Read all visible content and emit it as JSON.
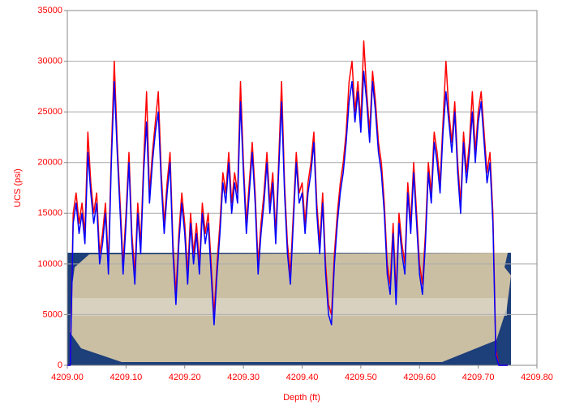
{
  "chart_data": {
    "type": "line",
    "xlabel": "Depth (ft)",
    "ylabel": "UCS (psi)",
    "xlim": [
      4209,
      4209.8
    ],
    "ylim": [
      0,
      35000
    ],
    "xticks": [
      {
        "value": 4209,
        "label": "4209.00"
      },
      {
        "value": 4209.1,
        "label": "4209.10"
      },
      {
        "value": 4209.2,
        "label": "4209.20"
      },
      {
        "value": 4209.3,
        "label": "4209.30"
      },
      {
        "value": 4209.4,
        "label": "4209.40"
      },
      {
        "value": 4209.5,
        "label": "4209.50"
      },
      {
        "value": 4209.6,
        "label": "4209.60"
      },
      {
        "value": 4209.7,
        "label": "4209.70"
      },
      {
        "value": 4209.8,
        "label": "4209.80"
      }
    ],
    "yticks": [
      0,
      5000,
      10000,
      15000,
      20000,
      25000,
      30000,
      35000
    ],
    "grid": true,
    "x": [
      4209,
      4209.005,
      4209.01,
      4209.015,
      4209.02,
      4209.025,
      4209.03,
      4209.035,
      4209.04,
      4209.045,
      4209.05,
      4209.055,
      4209.06,
      4209.065,
      4209.07,
      4209.075,
      4209.08,
      4209.085,
      4209.09,
      4209.095,
      4209.1,
      4209.105,
      4209.11,
      4209.115,
      4209.12,
      4209.125,
      4209.13,
      4209.135,
      4209.14,
      4209.145,
      4209.15,
      4209.155,
      4209.16,
      4209.165,
      4209.17,
      4209.175,
      4209.18,
      4209.185,
      4209.19,
      4209.195,
      4209.2,
      4209.205,
      4209.21,
      4209.215,
      4209.22,
      4209.225,
      4209.23,
      4209.235,
      4209.24,
      4209.245,
      4209.25,
      4209.255,
      4209.26,
      4209.265,
      4209.27,
      4209.275,
      4209.28,
      4209.285,
      4209.29,
      4209.295,
      4209.3,
      4209.305,
      4209.31,
      4209.315,
      4209.32,
      4209.325,
      4209.33,
      4209.335,
      4209.34,
      4209.345,
      4209.35,
      4209.355,
      4209.36,
      4209.365,
      4209.37,
      4209.375,
      4209.38,
      4209.385,
      4209.39,
      4209.395,
      4209.4,
      4209.405,
      4209.41,
      4209.415,
      4209.42,
      4209.425,
      4209.43,
      4209.435,
      4209.44,
      4209.445,
      4209.45,
      4209.455,
      4209.46,
      4209.465,
      4209.47,
      4209.475,
      4209.48,
      4209.485,
      4209.49,
      4209.495,
      4209.5,
      4209.505,
      4209.51,
      4209.515,
      4209.52,
      4209.525,
      4209.53,
      4209.535,
      4209.54,
      4209.545,
      4209.55,
      4209.555,
      4209.56,
      4209.565,
      4209.57,
      4209.575,
      4209.58,
      4209.585,
      4209.59,
      4209.595,
      4209.6,
      4209.605,
      4209.61,
      4209.615,
      4209.62,
      4209.625,
      4209.63,
      4209.635,
      4209.64,
      4209.645,
      4209.65,
      4209.655,
      4209.66,
      4209.665,
      4209.67,
      4209.675,
      4209.68,
      4209.685,
      4209.69,
      4209.695,
      4209.7,
      4209.705,
      4209.71,
      4209.715,
      4209.72,
      4209.725,
      4209.73,
      4209.735,
      4209.74,
      4209.745,
      4209.75
    ],
    "series": [
      {
        "color": "#ff0000",
        "values": [
          0,
          0,
          15000,
          17000,
          14000,
          16000,
          13000,
          23000,
          18000,
          15000,
          17000,
          11000,
          13000,
          16000,
          10000,
          21000,
          30000,
          22000,
          16000,
          10000,
          15000,
          21000,
          13000,
          9000,
          16000,
          12000,
          20000,
          27000,
          17000,
          21000,
          24000,
          27000,
          19000,
          14000,
          18000,
          21000,
          12000,
          7000,
          13000,
          17000,
          14000,
          9000,
          15000,
          11000,
          14000,
          10000,
          16000,
          13000,
          15000,
          10000,
          5000,
          10000,
          14000,
          19000,
          17000,
          21000,
          16000,
          19000,
          17000,
          28000,
          20000,
          14000,
          18000,
          22000,
          17000,
          10000,
          14000,
          17000,
          21000,
          16000,
          19000,
          13000,
          20000,
          28000,
          18000,
          12000,
          9000,
          15000,
          21000,
          17000,
          18000,
          14000,
          18000,
          20000,
          23000,
          16000,
          12000,
          17000,
          10000,
          6000,
          5000,
          11000,
          15000,
          18000,
          20000,
          23000,
          28000,
          30000,
          25000,
          28000,
          24000,
          32000,
          27000,
          23000,
          29000,
          26000,
          22000,
          20000,
          16000,
          10000,
          8000,
          14000,
          7000,
          15000,
          12000,
          10000,
          18000,
          14000,
          20000,
          15000,
          10000,
          8000,
          13000,
          20000,
          17000,
          23000,
          21000,
          18000,
          24000,
          30000,
          25000,
          22000,
          26000,
          20000,
          16000,
          23000,
          19000,
          22000,
          27000,
          21000,
          25000,
          27000,
          23000,
          19000,
          21000,
          15000,
          1500,
          0,
          0,
          0,
          0
        ]
      },
      {
        "color": "#0000ff",
        "values": [
          0,
          0,
          14000,
          16000,
          13000,
          15000,
          12000,
          21000,
          17000,
          14000,
          16000,
          10000,
          12000,
          15000,
          9000,
          20000,
          28000,
          21000,
          15000,
          9000,
          14000,
          20000,
          12000,
          8000,
          15000,
          11000,
          19000,
          24000,
          16000,
          20000,
          23000,
          25000,
          18000,
          13000,
          17000,
          20000,
          11000,
          6000,
          12000,
          16000,
          13000,
          8000,
          14000,
          10000,
          13000,
          9000,
          15000,
          12000,
          14000,
          9000,
          4000,
          9000,
          13000,
          18000,
          16000,
          20000,
          15000,
          18000,
          16000,
          26000,
          19000,
          13000,
          17000,
          21000,
          16000,
          9000,
          13000,
          16000,
          20000,
          15000,
          18000,
          12000,
          19000,
          26000,
          17000,
          11000,
          8000,
          14000,
          20000,
          16000,
          17000,
          13000,
          17000,
          19000,
          22000,
          15000,
          11000,
          16000,
          9000,
          5000,
          4000,
          10000,
          14000,
          17000,
          19000,
          22000,
          26000,
          28000,
          24000,
          27000,
          23000,
          29000,
          26000,
          22000,
          28000,
          25000,
          21000,
          19000,
          15000,
          9000,
          7000,
          13000,
          6000,
          14000,
          11000,
          9000,
          17000,
          13000,
          19000,
          14000,
          9000,
          7000,
          12000,
          19000,
          16000,
          22000,
          20000,
          17000,
          23000,
          27000,
          24000,
          21000,
          25000,
          19000,
          15000,
          22000,
          18000,
          21000,
          25000,
          20000,
          24000,
          26000,
          22000,
          18000,
          20000,
          14000,
          1000,
          0,
          0,
          0,
          0
        ]
      }
    ]
  }
}
